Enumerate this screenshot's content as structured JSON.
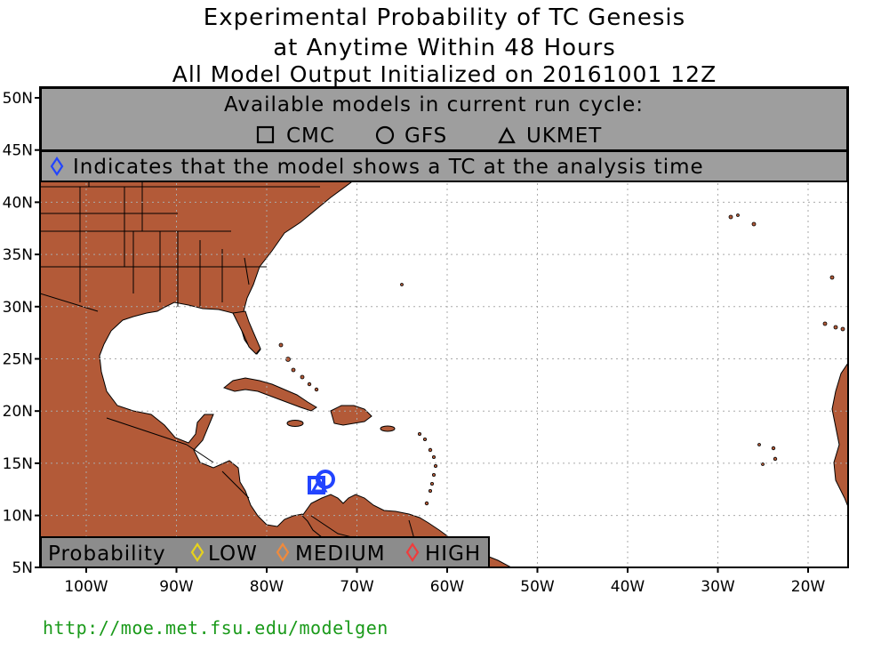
{
  "title": {
    "line1": "Experimental Probability of TC Genesis",
    "line2": "at Anytime Within 48 Hours",
    "line3": "All Model Output Initialized on 20161001 12Z"
  },
  "models_panel": {
    "heading": "Available models in current run cycle:",
    "models": [
      {
        "name": "CMC",
        "symbol": "square"
      },
      {
        "name": "GFS",
        "symbol": "circle"
      },
      {
        "name": "UKMET",
        "symbol": "triangle"
      }
    ]
  },
  "analysis_note": {
    "text": "Indicates that the model shows a TC at the analysis time",
    "color": "#2244ff"
  },
  "legend": {
    "title": "Probability",
    "items": [
      {
        "label": "LOW",
        "color": "#e6d21e"
      },
      {
        "label": "MEDIUM",
        "color": "#f08a3c"
      },
      {
        "label": "HIGH",
        "color": "#f03c3c"
      }
    ]
  },
  "axes": {
    "lat_labels": [
      "50N",
      "45N",
      "40N",
      "35N",
      "30N",
      "25N",
      "20N",
      "15N",
      "10N",
      "5N"
    ],
    "lon_labels": [
      "100W",
      "90W",
      "80W",
      "70W",
      "60W",
      "50W",
      "40W",
      "30W",
      "20W"
    ]
  },
  "markers": [
    {
      "model": "CMC",
      "symbol": "square",
      "lon": -73.5,
      "lat": 13.0,
      "color": "#2244ff"
    },
    {
      "model": "GFS",
      "symbol": "circle",
      "lon": -72.8,
      "lat": 13.6,
      "color": "#2244ff"
    },
    {
      "model": "UKMET",
      "symbol": "triangle",
      "lon": -73.0,
      "lat": 13.2,
      "color": "#2244ff"
    }
  ],
  "colors": {
    "land": "#b35a38",
    "ocean": "#ffffff",
    "panel": "#9e9e9e",
    "legend_bg": "#8c8c8c",
    "url": "#1a9a1a"
  },
  "footer": {
    "url": "http://moe.met.fsu.edu/modelgen"
  }
}
